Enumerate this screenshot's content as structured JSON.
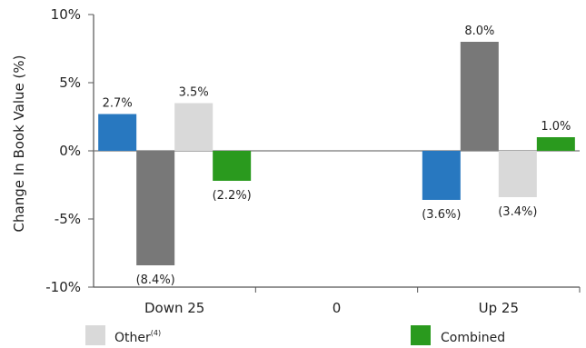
{
  "chart_data": {
    "type": "bar",
    "ylabel": "Change In Book Value (%)",
    "ylim": [
      -10,
      10
    ],
    "yticks": [
      10,
      5,
      0,
      -5,
      -10
    ],
    "ytick_labels": [
      "10%",
      "5%",
      "0%",
      "-5%",
      "-10%"
    ],
    "categories": [
      "Down 25",
      "0",
      "Up 25"
    ],
    "series": [
      {
        "name": "",
        "color": "#2878c0",
        "values": [
          2.7,
          null,
          -3.6
        ],
        "labels": [
          "2.7%",
          "",
          "(3.6%)"
        ]
      },
      {
        "name": "",
        "color": "#787878",
        "values": [
          -8.4,
          null,
          8.0
        ],
        "labels": [
          "(8.4%)",
          "",
          "8.0%"
        ]
      },
      {
        "name": "Other",
        "superscript": "(4)",
        "color": "#d9d9d9",
        "values": [
          3.5,
          null,
          -3.4
        ],
        "labels": [
          "3.5%",
          "",
          "(3.4%)"
        ]
      },
      {
        "name": "Combined",
        "color": "#2a9a1e",
        "values": [
          -2.2,
          null,
          1.0
        ],
        "labels": [
          "(2.2%)",
          "",
          "1.0%"
        ]
      }
    ],
    "legend": {
      "placement": "bottom",
      "entries": [
        {
          "label": "Other",
          "superscript": "(4)",
          "color": "#d9d9d9"
        },
        {
          "label": "Combined",
          "color": "#2a9a1e"
        }
      ]
    },
    "grid": false
  }
}
